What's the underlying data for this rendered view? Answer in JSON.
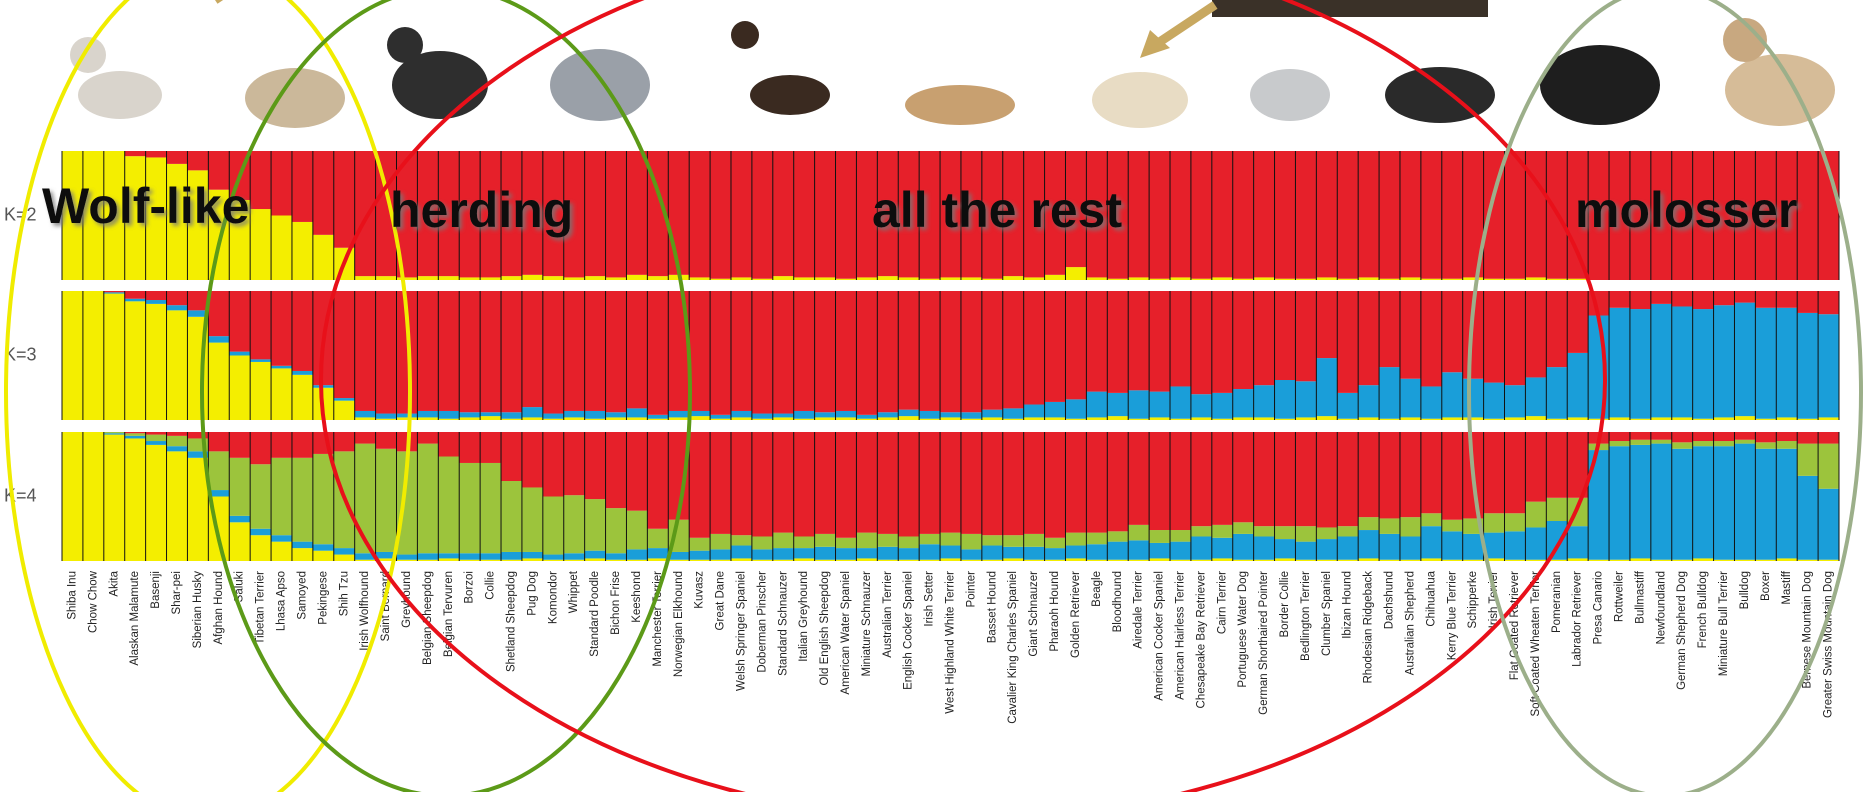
{
  "chart_data": {
    "type": "stacked-bar",
    "categories": [
      "Shiba Inu",
      "Chow Chow",
      "Akita",
      "Alaskan Malamute",
      "Basenji",
      "Shar-pei",
      "Siberian Husky",
      "Afghan Hound",
      "Saluki",
      "Tibetan Terrier",
      "Lhasa Apso",
      "Samoyed",
      "Pekingese",
      "Shih Tzu",
      "Irish Wolfhound",
      "Saint Bernard",
      "Greyhound",
      "Belgian Sheepdog",
      "Belgian Tervuren",
      "Borzoi",
      "Collie",
      "Shetland Sheepdog",
      "Pug Dog",
      "Komondor",
      "Whippet",
      "Standard Poodle",
      "Bichon Frise",
      "Keeshond",
      "Manchester Terrier",
      "Norwegian Elkhound",
      "Kuvasz",
      "Great Dane",
      "Welsh Springer Spaniel",
      "Doberman Pinscher",
      "Standard Schnauzer",
      "Italian Greyhound",
      "Old English Sheepdog",
      "American Water Spaniel",
      "Miniature Schnauzer",
      "Australian Terrier",
      "English Cocker Spaniel",
      "Irish Setter",
      "West Highland White Terrier",
      "Pointer",
      "Basset Hound",
      "Cavalier King Charles Spaniel",
      "Giant Schnauzer",
      "Pharaoh Hound",
      "Golden Retriever",
      "Beagle",
      "Bloodhound",
      "Airedale Terrier",
      "American Cocker Spaniel",
      "American Hairless Terrier",
      "Chesapeake Bay Retriever",
      "Cairn Terrier",
      "Portuguese Water Dog",
      "German Shorthaired Pointer",
      "Border Collie",
      "Bedlington Terrier",
      "Clumber Spaniel",
      "Ibizan Hound",
      "Rhodesian Ridgeback",
      "Dachshund",
      "Australian Shepherd",
      "Chihuahua",
      "Kerry Blue Terrier",
      "Schipperke",
      "Irish Terrier",
      "Flat Coated Retriever",
      "Soft Coated Wheaten Terrier",
      "Pomeranian",
      "Labrador Retriever",
      "Presa Canario",
      "Rottweiler",
      "Bullmastiff",
      "Newfoundland",
      "German Shepherd Dog",
      "French Bulldog",
      "Miniature Bull Terrier",
      "Bulldog",
      "Boxer",
      "Mastiff",
      "Bernese Mountain Dog",
      "Greater Swiss Mountain Dog"
    ],
    "panels": [
      {
        "label": "K=2",
        "ylim": [
          0,
          100
        ],
        "series": [
          {
            "color": "#f4ee00",
            "values": [
              100,
              100,
              100,
              96,
              95,
              90,
              85,
              70,
              62,
              55,
              50,
              45,
              35,
              25,
              3,
              3,
              2,
              3,
              3,
              2,
              2,
              3,
              4,
              3,
              2,
              3,
              2,
              4,
              3,
              4,
              2,
              1,
              2,
              1,
              3,
              2,
              2,
              1,
              2,
              3,
              2,
              1,
              2,
              2,
              1,
              3,
              2,
              4,
              10,
              2,
              1,
              2,
              1,
              2,
              1,
              2,
              1,
              2,
              1,
              1,
              2,
              1,
              2,
              1,
              2,
              1,
              1,
              2,
              1,
              1,
              2,
              1,
              1,
              0,
              0,
              0,
              0,
              0,
              0,
              0,
              0,
              0,
              0,
              0,
              0
            ]
          },
          {
            "color": "#e6202a",
            "values": [
              0,
              0,
              0,
              4,
              5,
              10,
              15,
              30,
              38,
              45,
              50,
              55,
              65,
              75,
              97,
              97,
              98,
              97,
              97,
              98,
              98,
              97,
              96,
              97,
              98,
              97,
              98,
              96,
              97,
              96,
              98,
              99,
              98,
              99,
              97,
              98,
              98,
              99,
              98,
              97,
              98,
              99,
              98,
              98,
              99,
              97,
              98,
              96,
              90,
              98,
              99,
              98,
              99,
              98,
              99,
              98,
              99,
              98,
              99,
              99,
              98,
              99,
              98,
              99,
              98,
              99,
              99,
              98,
              99,
              99,
              98,
              99,
              99,
              100,
              100,
              100,
              100,
              100,
              100,
              100,
              100,
              100,
              100,
              100,
              100
            ]
          }
        ]
      },
      {
        "label": "K=3",
        "ylim": [
          0,
          100
        ],
        "series": [
          {
            "color": "#f4ee00",
            "values": [
              100,
              100,
              98,
              92,
              90,
              85,
              80,
              60,
              50,
              45,
              40,
              35,
              25,
              15,
              2,
              1,
              2,
              2,
              1,
              2,
              3,
              1,
              2,
              1,
              2,
              1,
              2,
              2,
              1,
              2,
              3,
              1,
              2,
              1,
              2,
              1,
              2,
              2,
              1,
              2,
              3,
              1,
              2,
              1,
              2,
              1,
              2,
              2,
              1,
              2,
              3,
              1,
              2,
              1,
              2,
              1,
              2,
              2,
              1,
              2,
              3,
              1,
              2,
              1,
              2,
              1,
              2,
              2,
              1,
              2,
              3,
              1,
              2,
              1,
              2,
              1,
              2,
              2,
              1,
              2,
              3,
              1,
              2,
              1,
              2
            ]
          },
          {
            "color": "#1a9ed9",
            "values": [
              0,
              0,
              1,
              2,
              3,
              4,
              5,
              5,
              3,
              2,
              2,
              3,
              2,
              2,
              5,
              4,
              3,
              5,
              6,
              4,
              3,
              5,
              8,
              4,
              5,
              6,
              4,
              7,
              3,
              5,
              4,
              3,
              5,
              4,
              3,
              6,
              4,
              5,
              3,
              4,
              5,
              6,
              4,
              5,
              6,
              8,
              10,
              12,
              15,
              20,
              18,
              22,
              20,
              25,
              18,
              20,
              22,
              25,
              30,
              28,
              45,
              20,
              25,
              40,
              30,
              25,
              35,
              30,
              28,
              25,
              30,
              40,
              50,
              80,
              85,
              85,
              88,
              86,
              85,
              87,
              88,
              86,
              85,
              82,
              80
            ]
          },
          {
            "color": "#e6202a",
            "values": [
              0,
              0,
              1,
              6,
              7,
              11,
              15,
              35,
              47,
              53,
              58,
              62,
              73,
              83,
              93,
              95,
              95,
              93,
              93,
              94,
              94,
              94,
              90,
              95,
              93,
              93,
              94,
              91,
              96,
              93,
              93,
              96,
              93,
              95,
              95,
              93,
              94,
              93,
              96,
              94,
              92,
              93,
              94,
              94,
              92,
              91,
              88,
              86,
              84,
              78,
              79,
              77,
              78,
              74,
              80,
              79,
              76,
              73,
              69,
              70,
              52,
              79,
              73,
              59,
              68,
              74,
              63,
              68,
              71,
              73,
              67,
              59,
              48,
              19,
              13,
              14,
              10,
              12,
              14,
              11,
              9,
              13,
              13,
              17,
              18
            ]
          }
        ]
      },
      {
        "label": "K=4",
        "ylim": [
          0,
          100
        ],
        "series": [
          {
            "color": "#f4ee00",
            "values": [
              100,
              100,
              98,
              95,
              90,
              85,
              80,
              50,
              30,
              20,
              15,
              10,
              8,
              5,
              1,
              2,
              1,
              1,
              2,
              1,
              1,
              1,
              2,
              1,
              1,
              2,
              1,
              1,
              2,
              1,
              1,
              1,
              2,
              1,
              1,
              2,
              1,
              1,
              2,
              1,
              1,
              1,
              2,
              1,
              1,
              2,
              1,
              1,
              2,
              1,
              1,
              1,
              2,
              1,
              1,
              2,
              1,
              1,
              2,
              1,
              1,
              1,
              2,
              1,
              1,
              2,
              1,
              1,
              2,
              1,
              1,
              1,
              2,
              1,
              1,
              2,
              1,
              1,
              2,
              1,
              1,
              1,
              2,
              1,
              1
            ]
          },
          {
            "color": "#1a9ed9",
            "values": [
              0,
              0,
              1,
              2,
              3,
              4,
              5,
              5,
              5,
              5,
              5,
              5,
              5,
              5,
              5,
              5,
              4,
              5,
              4,
              5,
              5,
              6,
              5,
              4,
              5,
              6,
              5,
              8,
              8,
              6,
              7,
              8,
              10,
              8,
              9,
              8,
              10,
              9,
              8,
              10,
              9,
              12,
              10,
              8,
              11,
              9,
              10,
              9,
              10,
              12,
              14,
              15,
              12,
              14,
              18,
              16,
              20,
              18,
              15,
              14,
              16,
              18,
              22,
              20,
              18,
              25,
              22,
              20,
              20,
              22,
              25,
              30,
              25,
              85,
              88,
              88,
              90,
              86,
              87,
              88,
              90,
              86,
              85,
              65,
              55
            ]
          },
          {
            "color": "#9cc43c",
            "values": [
              0,
              0,
              1,
              2,
              5,
              8,
              10,
              30,
              45,
              50,
              60,
              65,
              70,
              75,
              85,
              80,
              80,
              85,
              75,
              70,
              70,
              55,
              50,
              45,
              45,
              40,
              35,
              30,
              15,
              25,
              10,
              12,
              8,
              10,
              12,
              9,
              10,
              8,
              12,
              10,
              9,
              8,
              10,
              12,
              8,
              9,
              10,
              8,
              10,
              9,
              8,
              12,
              10,
              9,
              8,
              10,
              9,
              8,
              10,
              12,
              9,
              8,
              10,
              12,
              15,
              10,
              9,
              12,
              15,
              14,
              20,
              18,
              22,
              5,
              4,
              4,
              3,
              5,
              4,
              4,
              3,
              5,
              6,
              25,
              35
            ]
          },
          {
            "color": "#e6202a",
            "values": [
              0,
              0,
              0,
              1,
              2,
              3,
              5,
              15,
              20,
              25,
              20,
              20,
              17,
              15,
              9,
              13,
              15,
              9,
              19,
              24,
              24,
              38,
              43,
              50,
              49,
              52,
              59,
              61,
              75,
              68,
              82,
              79,
              80,
              81,
              78,
              81,
              79,
              82,
              78,
              79,
              81,
              79,
              78,
              79,
              80,
              80,
              79,
              82,
              78,
              78,
              77,
              72,
              76,
              76,
              73,
              72,
              70,
              73,
              73,
              73,
              74,
              73,
              66,
              67,
              66,
              63,
              68,
              67,
              63,
              63,
              54,
              51,
              51,
              9,
              7,
              6,
              6,
              8,
              7,
              7,
              6,
              8,
              7,
              9,
              9
            ]
          }
        ]
      }
    ],
    "annotations": [
      "Wolf-like",
      "herding",
      "all the rest",
      "molosser"
    ]
  }
}
